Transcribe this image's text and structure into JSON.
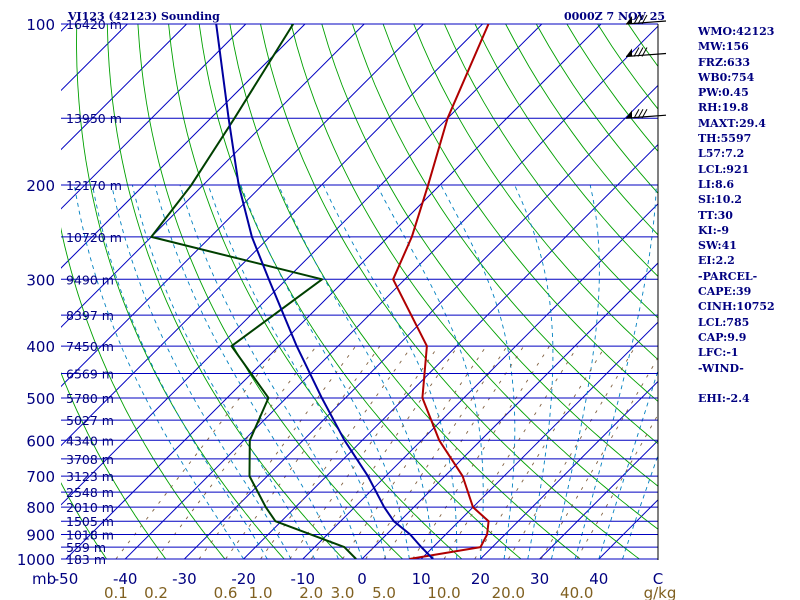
{
  "header": {
    "station_title": "VI123 (42123) Sounding",
    "time": "0000Z  7 NOV 25"
  },
  "indices": [
    "WMO:42123",
    "MW:156",
    "FRZ:633",
    "WB0:754",
    "PW:0.45",
    "RH:19.8",
    "MAXT:29.4",
    "TH:5597",
    "L57:7.2",
    "LCL:921",
    "LI:8.6",
    "SI:10.2",
    "TT:30",
    "KI:-9",
    "SW:41",
    "EI:2.2",
    "-PARCEL-",
    "CAPE:39",
    "CINH:10752",
    "LCL:785",
    "CAP:9.9",
    "LFC:-1",
    "-WIND-",
    "",
    "EHI:-2.4"
  ],
  "chart_data": {
    "type": "skew-t",
    "pressure_unit_label": "mb",
    "mixing_ratio_unit_label": "g/kg",
    "y_scale": "log",
    "ylim": [
      1000,
      100
    ],
    "xlim_temperature_at_1000": [
      -50,
      50
    ],
    "pressure_levels": [
      {
        "p": 100,
        "height": "16420 m",
        "label": "100"
      },
      {
        "p": 150,
        "height": "13950 m"
      },
      {
        "p": 200,
        "height": "12170 m",
        "label": "200"
      },
      {
        "p": 250,
        "height": "10720 m"
      },
      {
        "p": 300,
        "height": "9490 m",
        "label": "300"
      },
      {
        "p": 350,
        "height": "8397 m"
      },
      {
        "p": 400,
        "height": "7450 m",
        "label": "400"
      },
      {
        "p": 450,
        "height": "6569 m"
      },
      {
        "p": 500,
        "height": "5780 m",
        "label": "500"
      },
      {
        "p": 550,
        "height": "5027 m"
      },
      {
        "p": 600,
        "height": "4340 m",
        "label": "600"
      },
      {
        "p": 650,
        "height": "3708 m"
      },
      {
        "p": 700,
        "height": "3123 m",
        "label": "700"
      },
      {
        "p": 750,
        "height": "2548 m"
      },
      {
        "p": 800,
        "height": "2010 m",
        "label": "800"
      },
      {
        "p": 850,
        "height": "1505 m"
      },
      {
        "p": 900,
        "height": "1018 m",
        "label": "900"
      },
      {
        "p": 950,
        "height": "559 m"
      },
      {
        "p": 1000,
        "height": "183 m",
        "label": "1000"
      }
    ],
    "temperature_ticks": [
      "-50",
      "-40",
      "-30",
      "-20",
      "-10",
      "0",
      "10",
      "20",
      "30",
      "40",
      "C"
    ],
    "mixing_ratio_ticks": [
      "0.1",
      "0.2",
      "0.6",
      "1.0",
      "2.0",
      "3.0",
      "5.0",
      "10.0",
      "20.0",
      "40.0"
    ],
    "mixing_ratio_values": [
      0.1,
      0.2,
      0.6,
      1.0,
      2.0,
      3.0,
      5.0,
      10.0,
      20.0,
      40.0
    ],
    "series": [
      {
        "name": "temperature",
        "color": "#b00000",
        "points": [
          {
            "p": 1000,
            "t": 8
          },
          {
            "p": 950,
            "t": 18
          },
          {
            "p": 900,
            "t": 17
          },
          {
            "p": 850,
            "t": 15
          },
          {
            "p": 800,
            "t": 10
          },
          {
            "p": 700,
            "t": 3
          },
          {
            "p": 600,
            "t": -7
          },
          {
            "p": 500,
            "t": -17
          },
          {
            "p": 400,
            "t": -25
          },
          {
            "p": 300,
            "t": -42
          },
          {
            "p": 250,
            "t": -46
          },
          {
            "p": 200,
            "t": -52
          },
          {
            "p": 150,
            "t": -60
          },
          {
            "p": 100,
            "t": -69
          }
        ]
      },
      {
        "name": "dewpoint",
        "color": "#004000",
        "points": [
          {
            "p": 1000,
            "t": -1
          },
          {
            "p": 950,
            "t": -5
          },
          {
            "p": 850,
            "t": -21
          },
          {
            "p": 800,
            "t": -25
          },
          {
            "p": 700,
            "t": -33
          },
          {
            "p": 600,
            "t": -39
          },
          {
            "p": 500,
            "t": -43
          },
          {
            "p": 400,
            "t": -58
          },
          {
            "p": 300,
            "t": -54
          },
          {
            "p": 250,
            "t": -90
          },
          {
            "p": 200,
            "t": -92
          },
          {
            "p": 150,
            "t": -96
          },
          {
            "p": 100,
            "t": -102
          }
        ]
      },
      {
        "name": "parcel",
        "color": "#0000a0",
        "points": [
          {
            "p": 1000,
            "t": 12
          },
          {
            "p": 950,
            "t": 8
          },
          {
            "p": 900,
            "t": 4
          },
          {
            "p": 850,
            "t": -1
          },
          {
            "p": 800,
            "t": -5
          },
          {
            "p": 700,
            "t": -13
          },
          {
            "p": 600,
            "t": -23
          },
          {
            "p": 500,
            "t": -34
          },
          {
            "p": 400,
            "t": -47
          },
          {
            "p": 300,
            "t": -63
          },
          {
            "p": 250,
            "t": -73
          },
          {
            "p": 200,
            "t": -84
          },
          {
            "p": 150,
            "t": -97
          },
          {
            "p": 100,
            "t": -115
          }
        ]
      }
    ],
    "wind_barbs": [
      {
        "p": 100
      },
      {
        "p": 115
      },
      {
        "p": 150
      }
    ],
    "colors": {
      "isobar": "#000080",
      "isotherm": "#0000c0",
      "dry_adiabat": "#00a000",
      "moist_adiabat": "#0080c0",
      "mixing_ratio": "#806040",
      "label": "#000080",
      "mixing_label": "#806020"
    }
  }
}
